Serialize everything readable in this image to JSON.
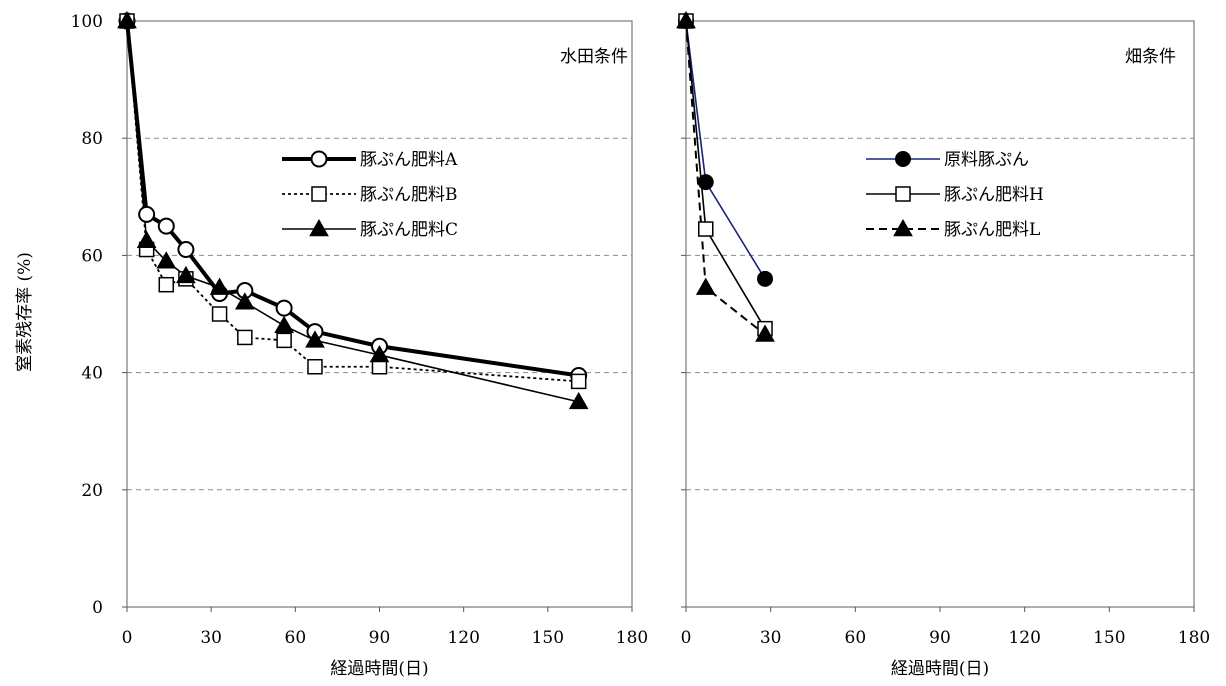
{
  "chart_data": [
    {
      "type": "line",
      "panel_label": "水田条件",
      "xlabel": "経過時間(日)",
      "ylabel": "窒素残存率 (%)",
      "xlim": [
        0,
        180
      ],
      "ylim": [
        0,
        100
      ],
      "xticks": [
        0,
        30,
        60,
        90,
        120,
        150,
        180
      ],
      "yticks": [
        0,
        20,
        40,
        60,
        80,
        100
      ],
      "grid": "horizontal dashed",
      "legend_position": "upper-middle",
      "series": [
        {
          "name": "豚ぷん肥料A",
          "marker": "open-circle",
          "line": "thick-solid",
          "color": "#000000",
          "x": [
            0,
            7,
            14,
            21,
            33,
            42,
            56,
            67,
            90,
            161
          ],
          "y": [
            100,
            67,
            65,
            61,
            53.5,
            54,
            51,
            47,
            44.5,
            39.5
          ]
        },
        {
          "name": "豚ぷん肥料B",
          "marker": "open-square",
          "line": "dotted",
          "color": "#000000",
          "x": [
            0,
            7,
            14,
            21,
            33,
            42,
            56,
            67,
            90,
            161
          ],
          "y": [
            100,
            61,
            55,
            56,
            50,
            46,
            45.5,
            41,
            41,
            38.5
          ]
        },
        {
          "name": "豚ぷん肥料C",
          "marker": "filled-triangle",
          "line": "thin-solid",
          "color": "#000000",
          "x": [
            0,
            7,
            14,
            21,
            33,
            42,
            56,
            67,
            90,
            161
          ],
          "y": [
            100,
            62.5,
            59,
            56.5,
            54.5,
            52,
            48,
            45.5,
            43,
            35
          ]
        }
      ]
    },
    {
      "type": "line",
      "panel_label": "畑条件",
      "xlabel": "経過時間(日)",
      "ylabel": "",
      "xlim": [
        0,
        180
      ],
      "ylim": [
        0,
        100
      ],
      "xticks": [
        0,
        30,
        60,
        90,
        120,
        150,
        180
      ],
      "yticks": [
        0,
        20,
        40,
        60,
        80,
        100
      ],
      "grid": "horizontal dashed",
      "legend_position": "upper-middle",
      "series": [
        {
          "name": "原料豚ぷん",
          "marker": "filled-circle",
          "line": "thin-solid",
          "color": "#1a237e",
          "x": [
            0,
            7,
            28
          ],
          "y": [
            100,
            72.5,
            56
          ]
        },
        {
          "name": "豚ぷん肥料H",
          "marker": "open-square",
          "line": "thin-solid",
          "color": "#000000",
          "x": [
            0,
            7,
            28
          ],
          "y": [
            100,
            64.5,
            47.5
          ]
        },
        {
          "name": "豚ぷん肥料L",
          "marker": "filled-triangle",
          "line": "dashed",
          "color": "#000000",
          "x": [
            0,
            7,
            28
          ],
          "y": [
            100,
            54.5,
            46.5
          ]
        }
      ]
    }
  ]
}
